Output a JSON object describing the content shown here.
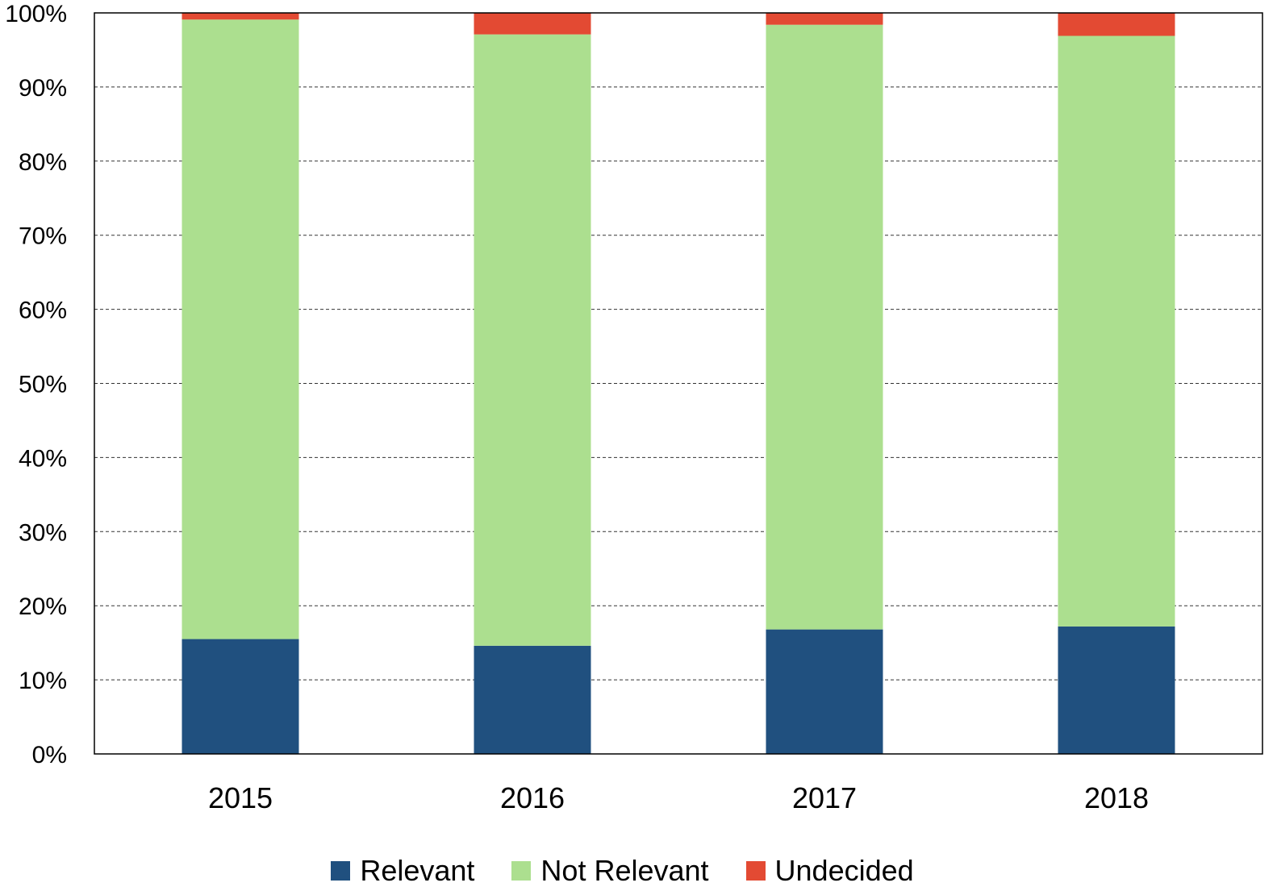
{
  "chart_data": {
    "type": "bar",
    "stacked": true,
    "categories": [
      "2015",
      "2016",
      "2017",
      "2018"
    ],
    "series": [
      {
        "name": "Relevant",
        "color": "#20507f",
        "values": [
          15.5,
          14.6,
          16.8,
          17.2
        ]
      },
      {
        "name": "Not Relevant",
        "color": "#acdf8f",
        "values": [
          83.6,
          82.5,
          81.6,
          79.7
        ]
      },
      {
        "name": "Undecided",
        "color": "#e34a33",
        "values": [
          0.9,
          2.9,
          1.6,
          3.1
        ]
      }
    ],
    "yticks": [
      "0%",
      "10%",
      "20%",
      "30%",
      "40%",
      "50%",
      "60%",
      "70%",
      "80%",
      "90%",
      "100%"
    ],
    "ylim": [
      0,
      100
    ],
    "grid": true,
    "legend": "bottom"
  }
}
